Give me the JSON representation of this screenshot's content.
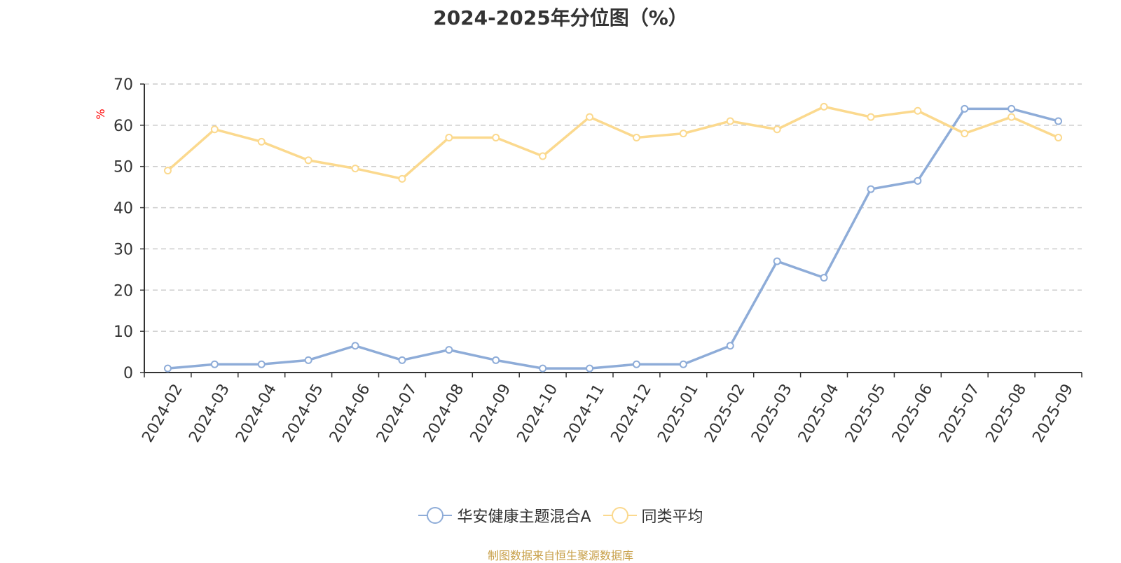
{
  "chart_data": {
    "type": "line",
    "title": "2024-2025年分位图（%）",
    "ylabel": "%",
    "xlabel": "",
    "ylim": [
      0,
      70
    ],
    "yticks": [
      0,
      10,
      20,
      30,
      40,
      50,
      60,
      70
    ],
    "grid": true,
    "legend_position": "bottom",
    "categories": [
      "2024-02",
      "2024-03",
      "2024-04",
      "2024-05",
      "2024-06",
      "2024-07",
      "2024-08",
      "2024-09",
      "2024-10",
      "2024-11",
      "2024-12",
      "2025-01",
      "2025-02",
      "2025-03",
      "2025-04",
      "2025-05",
      "2025-06",
      "2025-07",
      "2025-08",
      "2025-09"
    ],
    "series": [
      {
        "name": "华安健康主题混合A",
        "color": "#8eacd8",
        "values": [
          1,
          2,
          2,
          3,
          6.5,
          3,
          5.5,
          3,
          1,
          1,
          2,
          2,
          6.5,
          27,
          23,
          44.5,
          46.5,
          64,
          64,
          61
        ]
      },
      {
        "name": "同类平均",
        "color": "#fbd98e",
        "values": [
          49,
          59,
          56,
          51.5,
          49.5,
          47,
          57,
          57,
          52.5,
          62,
          57,
          58,
          61,
          59,
          64.5,
          62,
          63.5,
          58,
          62,
          57
        ]
      }
    ],
    "source_note": "制图数据来自恒生聚源数据库"
  }
}
